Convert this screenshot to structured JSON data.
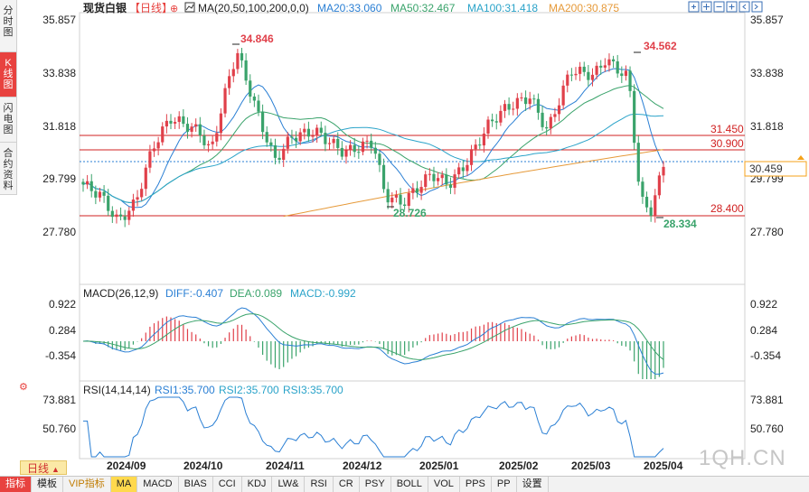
{
  "side_tabs": [
    "分时图",
    "K线图",
    "闪电图",
    "合约资料"
  ],
  "header": {
    "instrument": "现货白银",
    "period_tag": "【日线】",
    "ma_label": "MA(20,50,100,200,0,0)",
    "ma_values": [
      {
        "text": "MA20:33.060",
        "color": "#2a7fd4"
      },
      {
        "text": "MA50:32.467",
        "color": "#3aa36b"
      },
      {
        "text": "MA100:31.418",
        "color": "#2aa3c9"
      },
      {
        "text": "MA200:30.875",
        "color": "#e69a3a"
      }
    ],
    "toolbar_icons": [
      "expand-icon",
      "split-icon",
      "minus-icon",
      "plus-icon",
      "prev-icon",
      "next-icon"
    ]
  },
  "colors": {
    "up": "#e0404a",
    "down": "#3aa36b",
    "ma20": "#2a7fd4",
    "ma50": "#3aa36b",
    "ma100": "#2aa3c9",
    "ma200": "#e69a3a",
    "hline": "#d02020",
    "last": "#f4a21a"
  },
  "chart_data": [
    {
      "type": "candlestick",
      "title": "现货白银【日线】",
      "x_labels": [
        "2024/09",
        "2024/10",
        "2024/11",
        "2024/12",
        "2025/01",
        "2025/02",
        "2025/03",
        "2025/04"
      ],
      "y_ticks": [
        "35.857",
        "33.838",
        "31.818",
        "29.799",
        "27.780"
      ],
      "ylim": [
        27.78,
        35.857
      ],
      "annotations": {
        "high_1": "34.846",
        "high_2": "34.562",
        "low_1": "28.726",
        "low_2": "28.334"
      },
      "horizontal_lines": [
        "31.450",
        "30.900",
        "28.400"
      ],
      "last_price": "30.459",
      "series_names": [
        "MA20",
        "MA50",
        "MA100",
        "MA200"
      ]
    },
    {
      "type": "line",
      "indicator": "MACD(26,12,9)",
      "values_text": [
        "DIFF:-0.407",
        "DEA:0.089",
        "MACD:-0.992"
      ],
      "y_ticks": [
        "0.922",
        "0.284",
        "-0.354"
      ],
      "ylim": [
        -1.1,
        1.1
      ]
    },
    {
      "type": "line",
      "indicator": "RSI(14,14,14)",
      "values_text": [
        "RSI1:35.700",
        "RSI2:35.700",
        "RSI3:35.700"
      ],
      "y_ticks": [
        "73.881",
        "50.760"
      ],
      "ylim": [
        33,
        78
      ]
    }
  ],
  "period_button": "日线",
  "bottom_tabs": [
    "指标",
    "模板",
    "VIP指标",
    "MA",
    "MACD",
    "BIAS",
    "CCI",
    "KDJ",
    "LW&",
    "RSI",
    "CR",
    "PSY",
    "BOLL",
    "VOL",
    "PPS",
    "PP",
    "设置"
  ],
  "watermark": "1QH.CN"
}
